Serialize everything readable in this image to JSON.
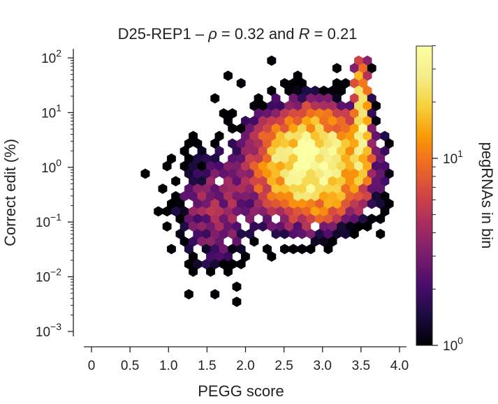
{
  "chart_data": {
    "type": "hexbin",
    "title_parts": [
      {
        "text": "D25-REP1 – ",
        "italic": false
      },
      {
        "text": "ρ",
        "italic": true
      },
      {
        "text": " = 0.32 and ",
        "italic": false
      },
      {
        "text": "R",
        "italic": true
      },
      {
        "text": " = 0.21",
        "italic": false
      }
    ],
    "xlabel": "PEGG score",
    "ylabel": "Correct edit (%)",
    "colorbar_label": "pegRNAs in bin",
    "x_ticks": [
      {
        "value": 0,
        "label": "0"
      },
      {
        "value": 0.5,
        "label": "0.5"
      },
      {
        "value": 1.0,
        "label": "1.0"
      },
      {
        "value": 1.5,
        "label": "1.5"
      },
      {
        "value": 2.0,
        "label": "2.0"
      },
      {
        "value": 2.5,
        "label": "2.5"
      },
      {
        "value": 3.0,
        "label": "3.0"
      },
      {
        "value": 3.5,
        "label": "3.5"
      },
      {
        "value": 4.0,
        "label": "4.0"
      }
    ],
    "y_ticks": [
      {
        "log": -3,
        "base": "10",
        "exp": "−3"
      },
      {
        "log": -2,
        "base": "10",
        "exp": "−2"
      },
      {
        "log": -1,
        "base": "10",
        "exp": "−1"
      },
      {
        "log": 0,
        "base": "10",
        "exp": "0"
      },
      {
        "log": 1,
        "base": "10",
        "exp": "1"
      },
      {
        "log": 2,
        "base": "10",
        "exp": "2"
      }
    ],
    "colorbar_ticks": [
      {
        "log": 0,
        "base": "10",
        "exp": "0"
      },
      {
        "log": 1,
        "base": "10",
        "exp": "1"
      }
    ],
    "xlim": [
      -0.25,
      4.0
    ],
    "ylim_log10": [
      -3.15,
      2.05
    ],
    "y_scale": "log",
    "color_scale": "log",
    "colormap": "inferno",
    "colorbar_range_log10": [
      0,
      1.6
    ],
    "grid": false,
    "data_extent": {
      "x_range": [
        -0.15,
        3.9
      ],
      "correct_edit_log10_range": [
        -3.0,
        1.95
      ],
      "max_count_near": {
        "x": 3.5,
        "correct_edit_log10": 1.0
      }
    }
  }
}
